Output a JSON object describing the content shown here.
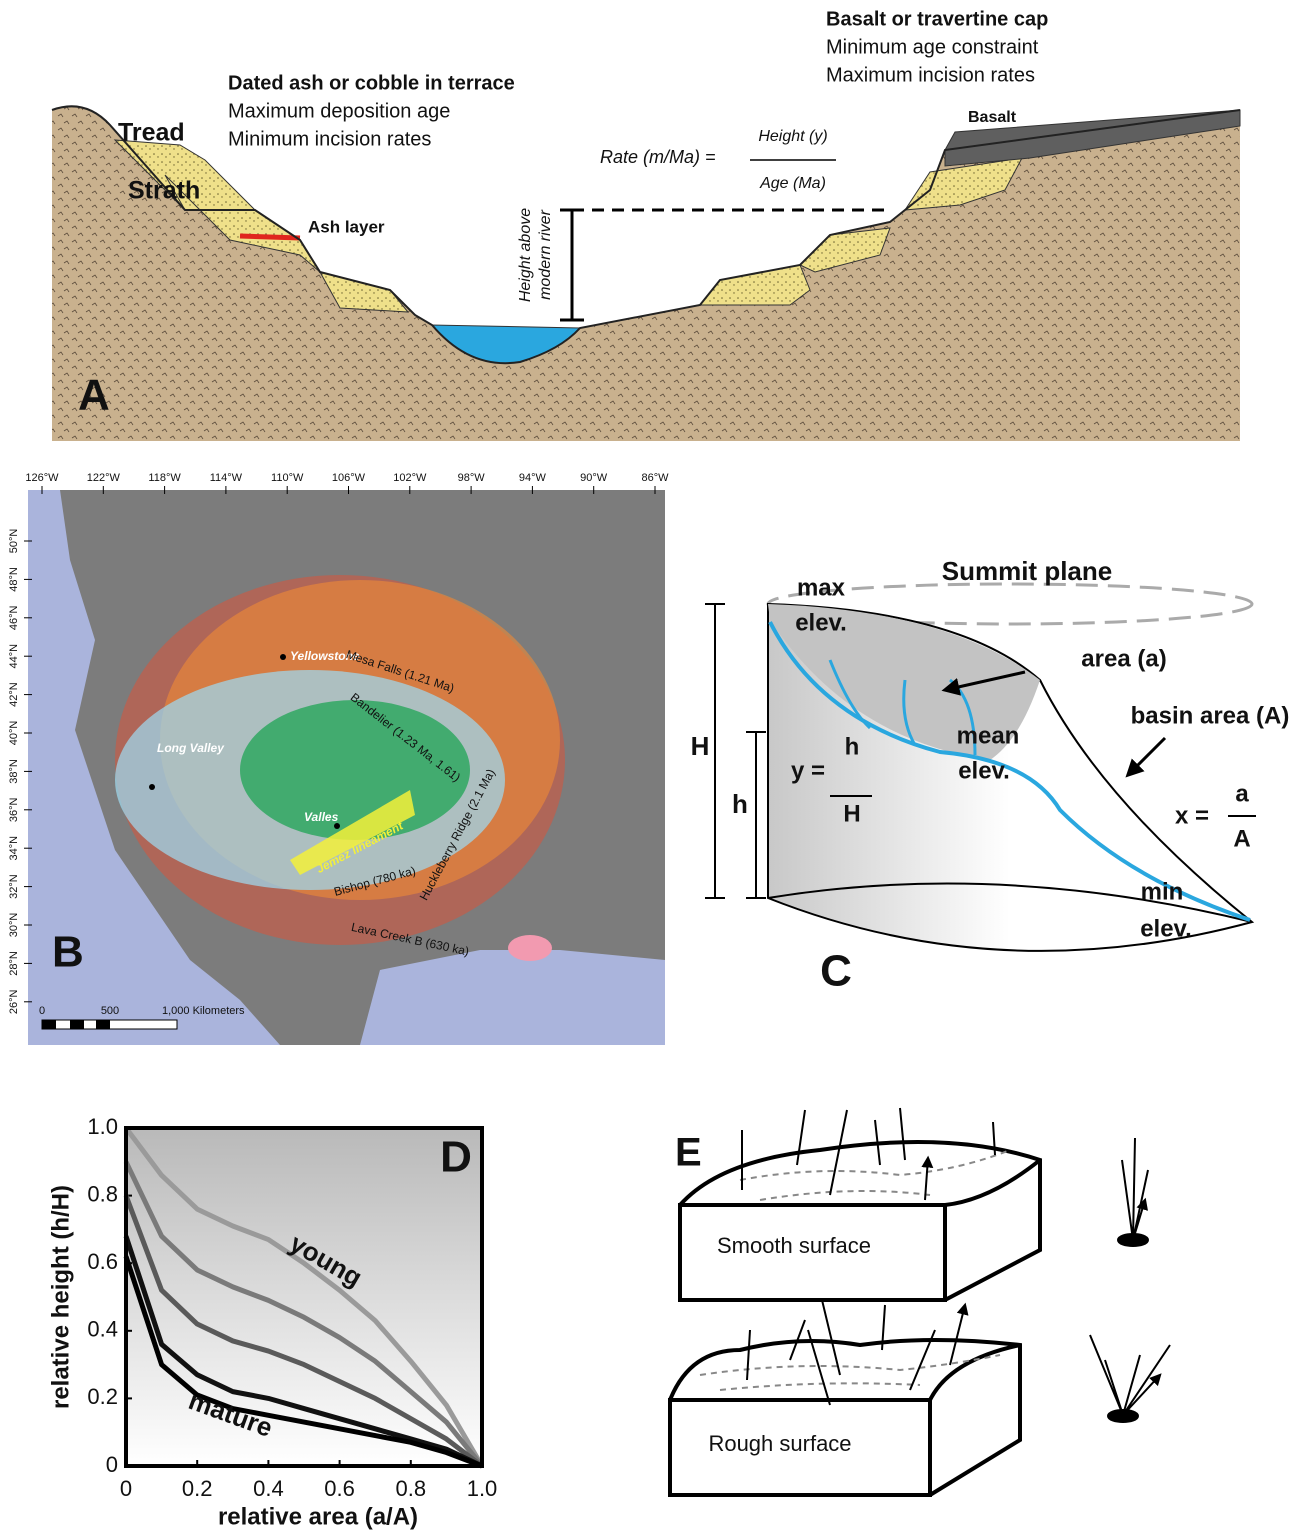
{
  "panel_a": {
    "label": "A",
    "basalt_note": {
      "title": "Basalt or travertine cap",
      "lines": [
        "Minimum age constraint",
        "Maximum incision rates"
      ]
    },
    "ash_note": {
      "title": "Dated ash or cobble in terrace",
      "lines": [
        "Maximum deposition age",
        "Minimum incision rates"
      ]
    },
    "tread": "Tread",
    "strath": "Strath",
    "ash_layer": "Ash layer",
    "basalt": "Basalt",
    "rate_formula": {
      "lhs": "Rate (m/Ma) =",
      "numerator": "Height (y)",
      "denominator": "Age (Ma)"
    },
    "height_label": [
      "Height above",
      "modern river"
    ]
  },
  "panel_b": {
    "label": "B",
    "longitudes": [
      "126°W",
      "122°W",
      "118°W",
      "114°W",
      "110°W",
      "106°W",
      "102°W",
      "98°W",
      "94°W",
      "90°W",
      "86°W"
    ],
    "latitudes": [
      "50°N",
      "48°N",
      "46°N",
      "44°N",
      "42°N",
      "40°N",
      "38°N",
      "36°N",
      "34°N",
      "32°N",
      "30°N",
      "28°N",
      "26°N"
    ],
    "places": [
      "Yellowstone",
      "Long Valley",
      "Valles"
    ],
    "ash_beds": [
      "Mesa Falls (1.21 Ma)",
      "Bandelier (1.23 Ma, 1.61)",
      "Bishop (780 ka)",
      "Huckleberry Ridge (2.1 Ma)",
      "Lava Creek B (630 ka)"
    ],
    "lineament": "Jemez lineament",
    "scale": [
      "0",
      "500",
      "1,000 Kilometers"
    ]
  },
  "panel_c": {
    "label": "C",
    "summit_plane": "Summit plane",
    "max_elev": [
      "max",
      "elev."
    ],
    "area": "area (a)",
    "basin_area": "basin area (A)",
    "mean_elev": [
      "mean",
      "elev."
    ],
    "min_elev": [
      "min",
      "elev."
    ],
    "H": "H",
    "h": "h",
    "y_formula": {
      "lhs": "y =",
      "numerator": "h",
      "denominator": "H"
    },
    "x_formula": {
      "lhs": "x =",
      "numerator": "a",
      "denominator": "A"
    }
  },
  "chart_data": {
    "type": "line",
    "label": "D",
    "x_label": "relative area (a/A)",
    "y_label": "relative height (h/H)",
    "annotations": [
      "young",
      "mature"
    ],
    "x": [
      0,
      0.1,
      0.2,
      0.3,
      0.4,
      0.5,
      0.6,
      0.7,
      0.8,
      0.9,
      1
    ],
    "series": [
      {
        "color": "#9a9a9a",
        "values": [
          1.0,
          0.86,
          0.76,
          0.71,
          0.67,
          0.6,
          0.52,
          0.43,
          0.31,
          0.18,
          0
        ]
      },
      {
        "color": "#7a7a7a",
        "values": [
          0.9,
          0.68,
          0.58,
          0.53,
          0.49,
          0.44,
          0.38,
          0.31,
          0.22,
          0.13,
          0
        ]
      },
      {
        "color": "#5a5a5a",
        "values": [
          0.8,
          0.52,
          0.42,
          0.37,
          0.34,
          0.3,
          0.25,
          0.2,
          0.14,
          0.08,
          0
        ]
      },
      {
        "color": "#111111",
        "values": [
          0.68,
          0.36,
          0.27,
          0.22,
          0.2,
          0.17,
          0.14,
          0.11,
          0.08,
          0.05,
          0
        ]
      },
      {
        "color": "#000000",
        "values": [
          0.62,
          0.3,
          0.21,
          0.17,
          0.15,
          0.13,
          0.11,
          0.09,
          0.07,
          0.04,
          0
        ]
      }
    ],
    "xlim": [
      0,
      1
    ],
    "ylim": [
      0,
      1
    ],
    "xticks": [
      0,
      0.2,
      0.4,
      0.6,
      0.8,
      {
        "value": 1,
        "label": "1.0"
      }
    ],
    "yticks": [
      0,
      0.2,
      0.4,
      0.6,
      0.8,
      {
        "value": 1,
        "label": "1.0"
      }
    ]
  },
  "panel_e": {
    "label": "E",
    "smooth": "Smooth surface",
    "rough": "Rough surface"
  }
}
